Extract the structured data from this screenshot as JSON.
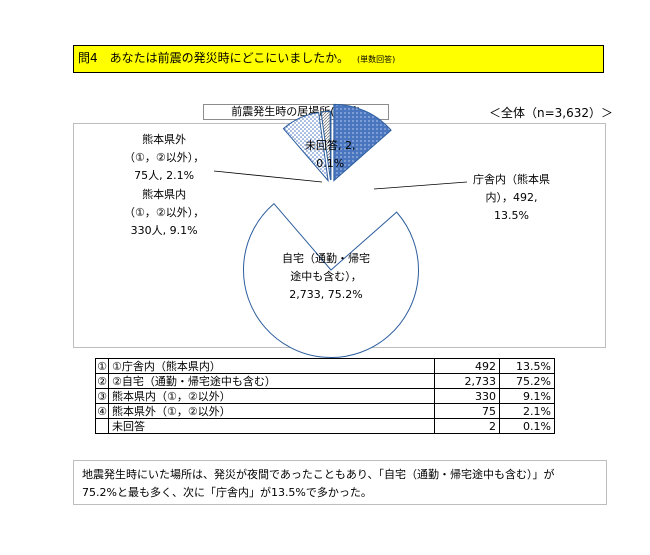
{
  "question": {
    "text": "問4　あなたは前震の発災時にどこにいましたか。",
    "note": "(単数回答)"
  },
  "chart_data": {
    "type": "pie",
    "title": "前震発生時の居場所(場所)",
    "total_label": "＜全体（n=3,632）＞",
    "slices": [
      {
        "name": "庁舎内（熊本県内）",
        "count": 492,
        "percent": 13.5,
        "pattern": "dark-dots",
        "color": "#4a76c0"
      },
      {
        "name": "自宅（通勤・帰宅途中も含む）",
        "count": 2733,
        "percent": 75.2,
        "pattern": "white",
        "color": "#ffffff"
      },
      {
        "name": "熊本県内（①，②以外）",
        "count": 330,
        "percent": 9.1,
        "pattern": "light-dots",
        "color": "#4a76c0"
      },
      {
        "name": "熊本県外（①，②以外）",
        "count": 75,
        "percent": 2.1,
        "pattern": "hatch",
        "color": "#9a9a9a"
      },
      {
        "name": "未回答",
        "count": 2,
        "percent": 0.1,
        "pattern": "white",
        "color": "#ffffff"
      }
    ],
    "labels": {
      "kencho": [
        "庁舎内（熊本県",
        "内），492,",
        "13.5%"
      ],
      "jitaku": [
        "自宅（通勤・帰宅",
        "途中も含む），",
        "2,733, 75.2%"
      ],
      "kennai": [
        "熊本県内",
        "（①，②以外），",
        "330人, 9.1%"
      ],
      "kengai": [
        "熊本県外",
        "（①，②以外），",
        "75人, 2.1%"
      ],
      "mikaito": [
        "未回答, 2,",
        "0.1%"
      ]
    },
    "stroke_color": "#2e5e9e"
  },
  "table": {
    "rows": [
      {
        "no": "①",
        "label": "①庁舎内（熊本県内）",
        "count": "492",
        "percent": "13.5%"
      },
      {
        "no": "②",
        "label": "②自宅（通勤・帰宅途中も含む）",
        "count": "2,733",
        "percent": "75.2%"
      },
      {
        "no": "③",
        "label": "熊本県内（①，②以外）",
        "count": "330",
        "percent": "9.1%"
      },
      {
        "no": "④",
        "label": "熊本県外（①，②以外）",
        "count": "75",
        "percent": "2.1%"
      },
      {
        "no": "",
        "label": "未回答",
        "count": "2",
        "percent": "0.1%"
      }
    ]
  },
  "summary": {
    "line1": "地震発生時にいた場所は、発災が夜間であったこともあり、「自宅（通勤・帰宅途中も含む）」が",
    "line2": "75.2%と最も多く、次に「庁舎内」が13.5%で多かった。"
  }
}
